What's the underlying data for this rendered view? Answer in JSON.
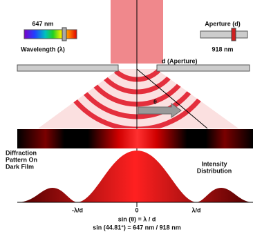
{
  "wavelength": {
    "value": "647 nm",
    "label": "Wavelength (λ)"
  },
  "aperture": {
    "label": "Aperture (d)",
    "value": "918 nm",
    "bar_label": "d (Aperture)"
  },
  "angle_label": "θ",
  "film_label": [
    "Diffraction",
    "Pattern On",
    "Dark Film"
  ],
  "intensity_label": [
    "Intensity",
    "Distribution"
  ],
  "axis_labels": [
    "-λ/d",
    "0",
    "λ/d"
  ],
  "formula": "sin (θ) = λ / d",
  "formula_values": "sin (44.81°) = 647 nm / 918 nm"
}
